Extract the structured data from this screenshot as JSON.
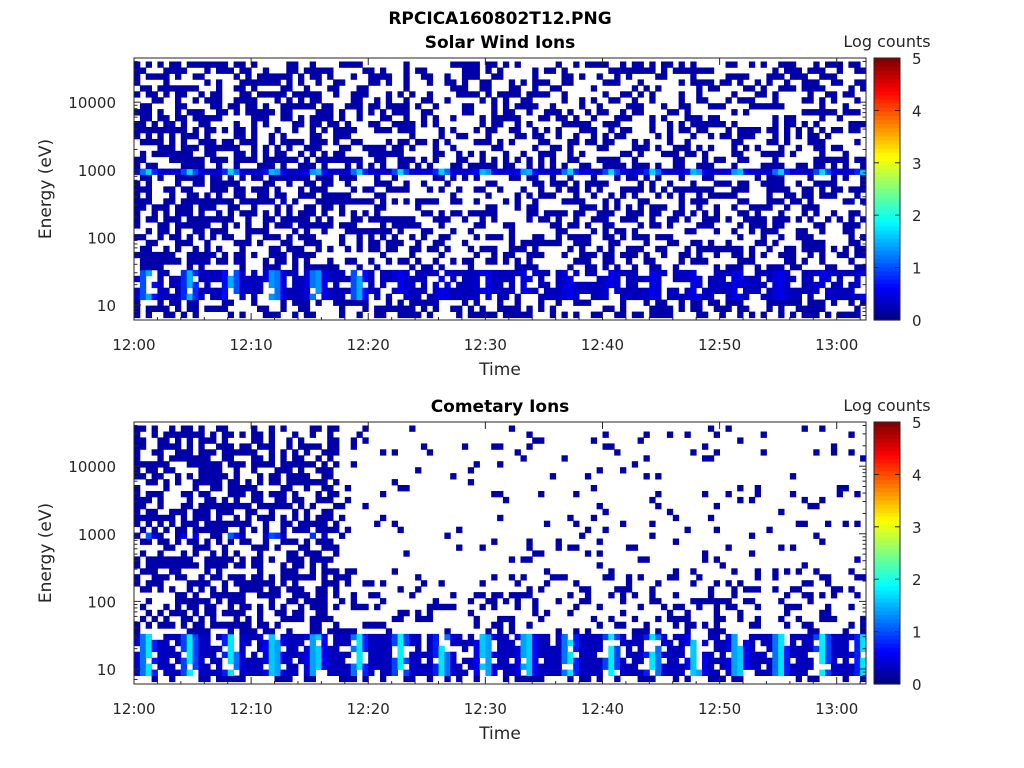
{
  "figure": {
    "title": "RPCICA160802T12.PNG"
  },
  "colormap": [
    "#00007f",
    "#0000ff",
    "#007fff",
    "#00ffff",
    "#7fff7f",
    "#ffff00",
    "#ff7f00",
    "#ff0000",
    "#7f0000"
  ],
  "chart_data": [
    {
      "type": "heatmap",
      "title": "Solar Wind Ions",
      "xlabel": "Time",
      "ylabel": "Energy (eV)",
      "x_ticks": [
        "12:00",
        "12:10",
        "12:20",
        "12:30",
        "12:40",
        "12:50",
        "13:00"
      ],
      "x_range_minutes": [
        0,
        62.5
      ],
      "y_scale": "log",
      "y_range": [
        6,
        45000
      ],
      "y_ticks": [
        10,
        100,
        1000,
        10000
      ],
      "colorbar": {
        "label": "Log counts",
        "range": [
          0,
          5
        ],
        "ticks": [
          0,
          1,
          2,
          3,
          4,
          5
        ]
      },
      "grid": false,
      "cells": {
        "time_step_minutes": 0.5,
        "energy_bins": [
          6.5,
          8,
          9.8,
          12,
          14.7,
          18,
          22,
          27,
          33,
          40,
          50,
          61,
          75,
          92,
          112,
          137,
          168,
          206,
          252,
          309,
          378,
          463,
          567,
          694,
          850,
          1040,
          1274,
          1560,
          1910,
          2340,
          2866,
          3510,
          4298,
          5264,
          6446,
          7894,
          9667,
          11839,
          14498,
          17754,
          21742,
          26626,
          32607,
          39931
        ],
        "description_of_pattern": "Sparse low-count (~0.1-0.5 log counts) detections across all energies with a persistent band near 800-900 eV (~1.5) and a low-energy band at 15-30 eV with peaks ~1.5 every ~3.5 minutes."
      },
      "features": [
        {
          "name": "solar-wind-band",
          "energy_eV": 850,
          "log_counts": 1.6,
          "period_minutes": 3.5
        },
        {
          "name": "low-energy-band",
          "energy_range_eV": [
            15,
            30
          ],
          "log_counts": 1.2
        }
      ]
    },
    {
      "type": "heatmap",
      "title": "Cometary Ions",
      "xlabel": "Time",
      "ylabel": "Energy (eV)",
      "x_ticks": [
        "12:00",
        "12:10",
        "12:20",
        "12:30",
        "12:40",
        "12:50",
        "13:00"
      ],
      "x_range_minutes": [
        0,
        62.5
      ],
      "y_scale": "log",
      "y_range": [
        6,
        45000
      ],
      "y_ticks": [
        10,
        100,
        1000,
        10000
      ],
      "colorbar": {
        "label": "Log counts",
        "range": [
          0,
          5
        ],
        "ticks": [
          0,
          1,
          2,
          3,
          4,
          5
        ]
      },
      "grid": false,
      "features": [
        {
          "name": "dense-region",
          "time_range_minutes": [
            0,
            17.5
          ],
          "energy_range_eV": [
            6,
            40000
          ],
          "log_counts": 0.3
        },
        {
          "name": "sparse-region",
          "time_range_minutes": [
            17.5,
            62.5
          ],
          "energy_range_eV": [
            100,
            40000
          ],
          "log_counts": 0.2
        },
        {
          "name": "low-energy-band",
          "energy_range_eV": [
            8,
            30
          ],
          "log_counts": 1.6,
          "period_minutes": 3.5
        }
      ]
    }
  ]
}
